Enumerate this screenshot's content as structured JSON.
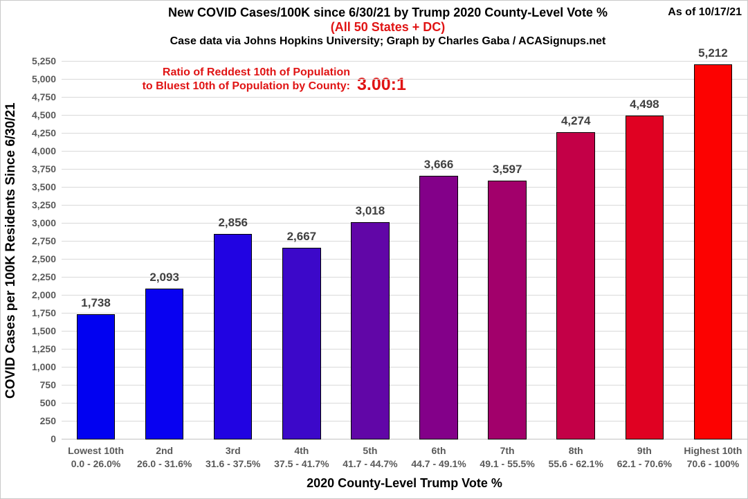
{
  "header": {
    "title": "New COVID Cases/100K since 6/30/21 by Trump 2020 County-Level Vote %",
    "subtitle": "(All 50 States + DC)",
    "credit": "Case data via Johns Hopkins University; Graph by Charles Gaba / ACASignups.net",
    "as_of": "As of 10/17/21"
  },
  "annotation": {
    "line1": "Ratio of Reddest 10th of Population",
    "line2": "to Bluest 10th of Population by County:",
    "ratio": "3.00:1"
  },
  "chart_data": {
    "type": "bar",
    "title": "New COVID Cases/100K since 6/30/21 by Trump 2020 County-Level Vote %",
    "subtitle": "(All 50 States + DC)",
    "xlabel": "2020 County-Level Trump Vote %",
    "ylabel": "COVID Cases per 100K Residents Since 6/30/21",
    "ylim": [
      0,
      5250
    ],
    "ytick_step": 250,
    "grid": true,
    "legend": "none",
    "categories": [
      "Lowest 10th",
      "2nd",
      "3rd",
      "4th",
      "5th",
      "6th",
      "7th",
      "8th",
      "9th",
      "Highest 10th"
    ],
    "category_ranges": [
      "0.0 - 26.0%",
      "26.0 - 31.6%",
      "31.6 - 37.5%",
      "37.5 - 41.7%",
      "41.7 - 44.7%",
      "44.7 - 49.1%",
      "49.1 - 55.5%",
      "55.6 - 62.1%",
      "62.1 - 70.6%",
      "70.6 - 100%"
    ],
    "values": [
      1738,
      2093,
      2856,
      2667,
      3018,
      3666,
      3597,
      4274,
      4498,
      5212
    ],
    "value_labels": [
      "1,738",
      "2,093",
      "2,856",
      "2,667",
      "3,018",
      "3,666",
      "3,597",
      "4,274",
      "4,498",
      "5,212"
    ],
    "bar_colors": [
      "#0101f1",
      "#0801f1",
      "#2103e2",
      "#3c08c9",
      "#6106a7",
      "#830089",
      "#a2006b",
      "#c30047",
      "#e00122",
      "#fc0201"
    ]
  },
  "colors": {
    "accent_red": "#e01414",
    "grid": "#d9d9d9",
    "axis_text": "#595959",
    "value_label": "#404040",
    "bar_border": "#000000"
  }
}
